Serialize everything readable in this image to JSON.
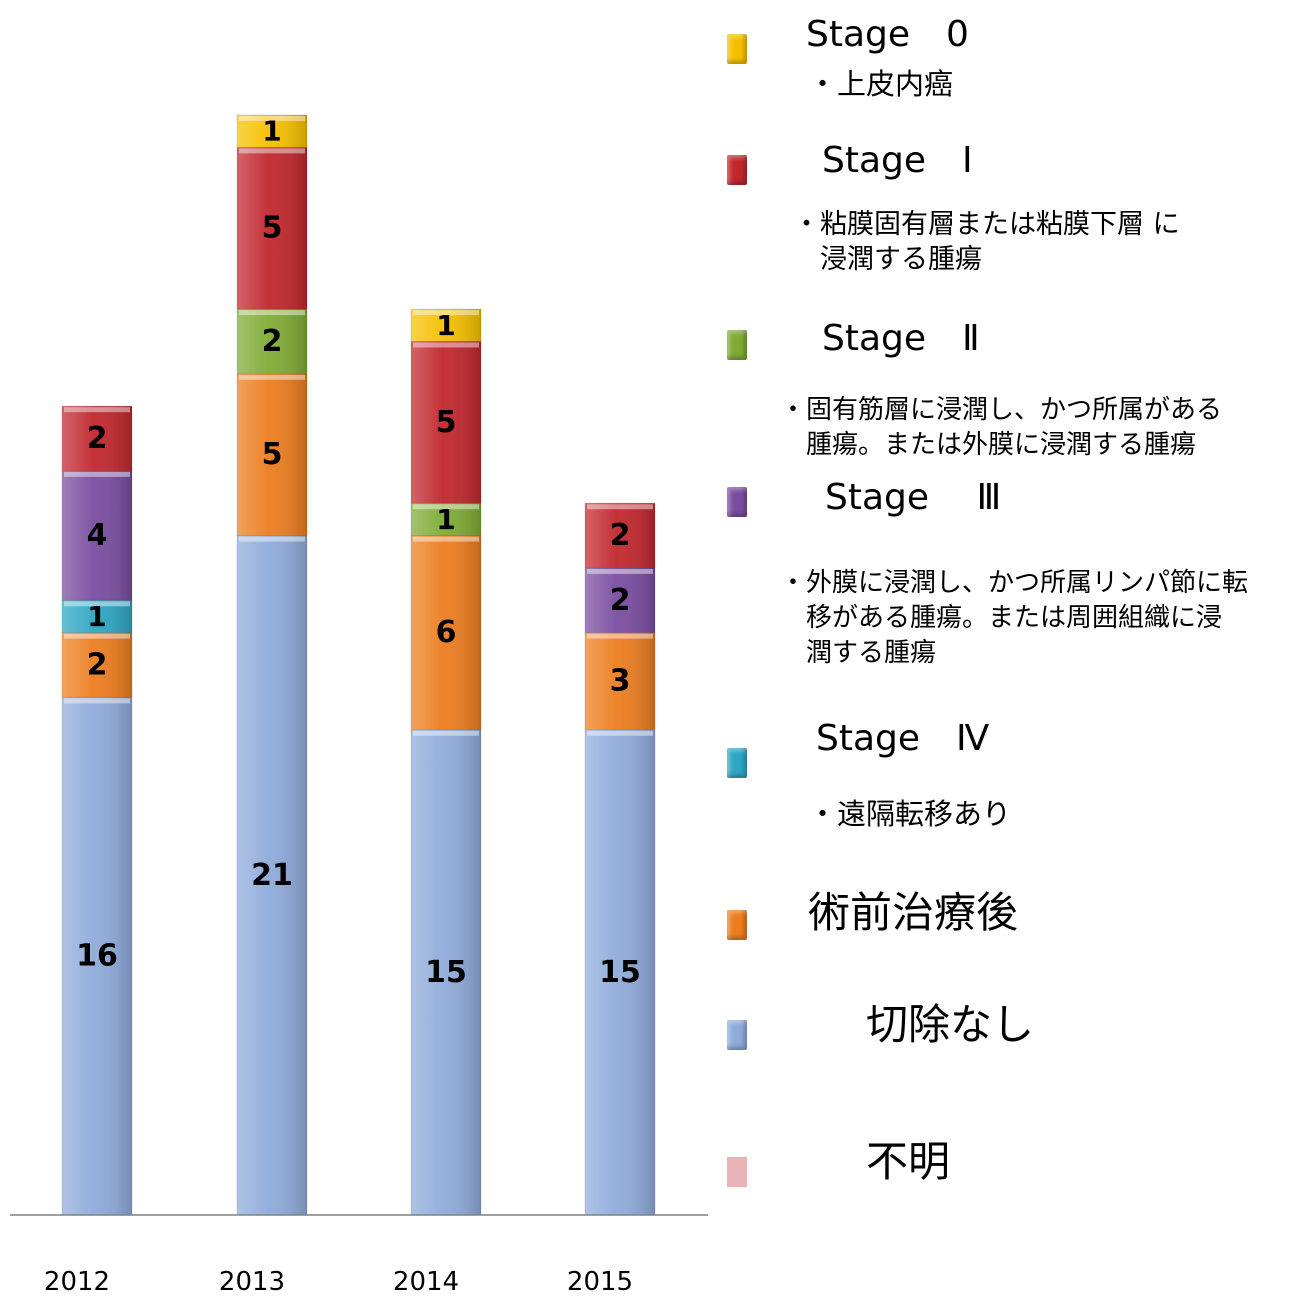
{
  "chart_data": {
    "type": "bar",
    "stacked": true,
    "categories": [
      "2012",
      "2013",
      "2014",
      "2015"
    ],
    "series": [
      {
        "name": "切除なし",
        "color": "#8fabdb",
        "values": [
          16,
          21,
          15,
          15
        ]
      },
      {
        "name": "術前治療後",
        "color": "#ec7d1f",
        "values": [
          2,
          5,
          6,
          3
        ]
      },
      {
        "name": "Stage Ⅳ",
        "color": "#2ea6c4",
        "values": [
          1,
          0,
          0,
          0
        ]
      },
      {
        "name": "Stage Ⅲ",
        "color": "#7a4da0",
        "values": [
          4,
          0,
          0,
          2
        ]
      },
      {
        "name": "Stage Ⅱ",
        "color": "#7fab35",
        "values": [
          0,
          2,
          1,
          0
        ]
      },
      {
        "name": "Stage Ⅰ",
        "color": "#c1272d",
        "values": [
          2,
          5,
          5,
          2
        ]
      },
      {
        "name": "Stage 0",
        "color": "#f6c000",
        "values": [
          0,
          1,
          1,
          0
        ]
      },
      {
        "name": "不明",
        "color": "#e8b4b8",
        "values": [
          0,
          0,
          0,
          0
        ]
      }
    ],
    "ylim": [
      0,
      34
    ],
    "grid": false,
    "legend": "right"
  },
  "legend": {
    "items": [
      {
        "title": "Stage　0",
        "desc": "・上皮内癌",
        "color": "#f6c000"
      },
      {
        "title": "Stage　Ⅰ",
        "desc": "・粘膜固有層または粘膜下層 に\n　浸潤する腫瘍",
        "color": "#c1272d"
      },
      {
        "title": "Stage　Ⅱ",
        "desc": "・固有筋層に浸潤し、かつ所属がある\n　腫瘍。または外膜に浸潤する腫瘍",
        "color": "#7fab35"
      },
      {
        "title": "Stage　 Ⅲ",
        "desc": "・外膜に浸潤し、かつ所属リンパ節に転\n　移がある腫瘍。または周囲組織に浸\n　潤する腫瘍",
        "color": "#7a4da0"
      },
      {
        "title": "Stage　Ⅳ",
        "desc": "・遠隔転移あり",
        "color": "#2ea6c4"
      },
      {
        "title": "術前治療後",
        "desc": "",
        "color": "#ec7d1f"
      },
      {
        "title": "切除なし",
        "desc": "",
        "color": "#8fabdb"
      },
      {
        "title": "不明",
        "desc": "",
        "color": "#e8b4b8"
      }
    ]
  }
}
